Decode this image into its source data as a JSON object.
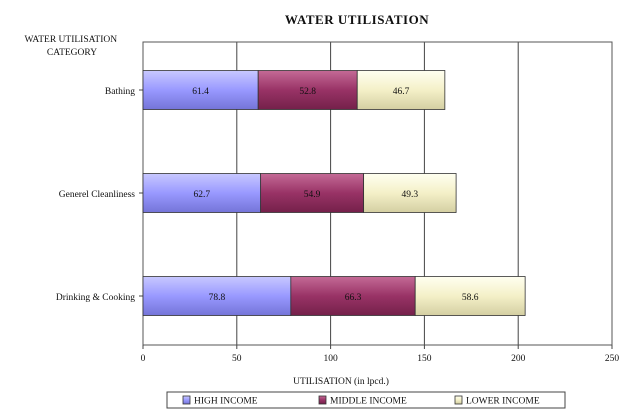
{
  "chart_data": {
    "type": "bar",
    "orientation": "horizontal",
    "stacked": true,
    "title": "WATER UTILISATION",
    "ylabel": "WATER UTILISATION CATEGORY",
    "ylabel_lines": [
      "WATER UTILISATION",
      "CATEGORY"
    ],
    "xlabel": "UTILISATION (in lpcd.)",
    "xlim": [
      0,
      250
    ],
    "xticks": [
      0,
      50,
      100,
      150,
      200,
      250
    ],
    "grid": "vertical",
    "legend_position": "bottom",
    "categories": [
      "Bathing",
      "Generel Cleanliness",
      "Drinking & Cooking"
    ],
    "series": [
      {
        "name": "HIGH INCOME",
        "color": "#9999ff",
        "values": [
          61.4,
          62.7,
          78.8
        ]
      },
      {
        "name": "MIDDLE INCOME",
        "color": "#993366",
        "values": [
          52.8,
          54.9,
          66.3
        ]
      },
      {
        "name": "LOWER INCOME",
        "color": "#ffffcc",
        "values": [
          46.7,
          49.3,
          58.6
        ]
      }
    ]
  }
}
